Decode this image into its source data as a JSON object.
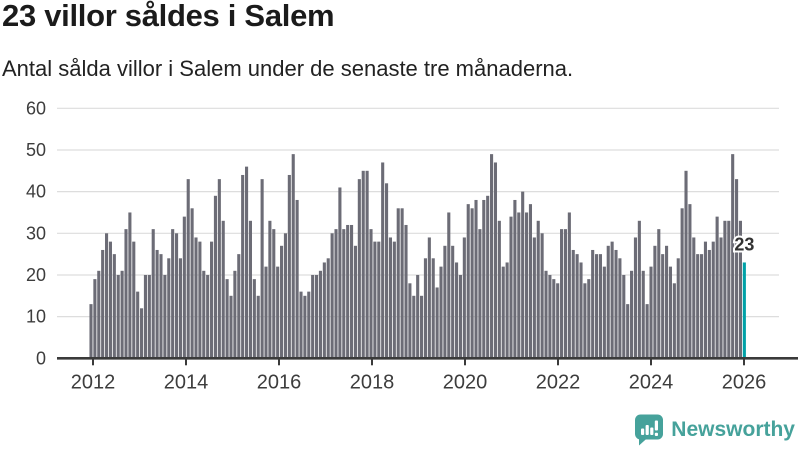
{
  "header": {
    "title": "23 villor såldes i Salem",
    "subtitle": "Antal sålda villor i Salem under de senaste tre månaderna."
  },
  "chart_data": {
    "type": "bar",
    "title": "23 villor såldes i Salem",
    "subtitle": "Antal sålda villor i Salem under de senaste tre månaderna.",
    "x_unit": "month",
    "x_range_years": [
      "2012",
      "2026"
    ],
    "ylim": [
      0,
      60
    ],
    "yticks": [
      0,
      10,
      20,
      30,
      40,
      50,
      60
    ],
    "xtick_labels": [
      "2012",
      "2014",
      "2016",
      "2018",
      "2020",
      "2022",
      "2024",
      "2026"
    ],
    "grid": true,
    "legend": "none",
    "values": [
      13,
      19,
      21,
      26,
      30,
      28,
      25,
      20,
      21,
      31,
      35,
      28,
      16,
      12,
      20,
      20,
      31,
      26,
      25,
      20,
      24,
      31,
      30,
      24,
      34,
      43,
      36,
      29,
      28,
      21,
      20,
      28,
      39,
      43,
      33,
      19,
      15,
      21,
      25,
      44,
      46,
      33,
      19,
      15,
      43,
      22,
      33,
      31,
      22,
      27,
      30,
      44,
      49,
      38,
      16,
      15,
      16,
      20,
      20,
      21,
      23,
      24,
      30,
      31,
      41,
      31,
      32,
      32,
      27,
      43,
      45,
      45,
      31,
      28,
      28,
      47,
      42,
      29,
      28,
      36,
      36,
      32,
      18,
      15,
      20,
      15,
      24,
      29,
      24,
      17,
      22,
      27,
      35,
      27,
      23,
      20,
      29,
      37,
      36,
      38,
      31,
      38,
      39,
      49,
      47,
      33,
      22,
      23,
      34,
      38,
      35,
      40,
      35,
      37,
      29,
      33,
      30,
      21,
      20,
      19,
      18,
      31,
      31,
      35,
      26,
      25,
      23,
      18,
      19,
      26,
      25,
      25,
      22,
      27,
      28,
      26,
      24,
      20,
      13,
      21,
      29,
      33,
      21,
      13,
      22,
      27,
      31,
      25,
      27,
      22,
      18,
      24,
      36,
      45,
      37,
      29,
      25,
      25,
      28,
      26,
      28,
      34,
      29,
      33,
      33,
      49,
      43,
      33,
      23
    ],
    "bar_color": "#6c6c76",
    "highlight": {
      "index": 168,
      "value": 23,
      "label": "23",
      "color": "#00a1a7"
    },
    "axis_color": "#3a3a3a",
    "grid_color": "#dddddd",
    "tick_label_color": "#3d3d3d"
  },
  "footer": {
    "brand": "Newsworthy",
    "brand_color": "#46a29b",
    "logo_icon": "speech-bubble-bar-chart-icon"
  }
}
